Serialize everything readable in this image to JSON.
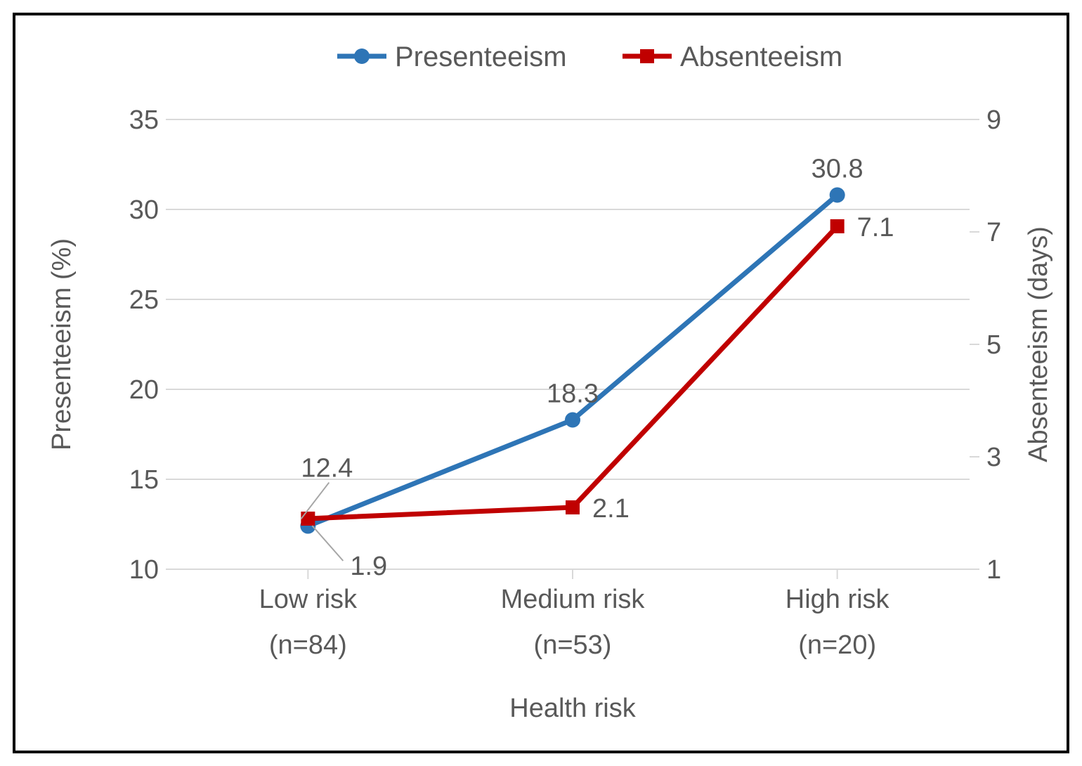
{
  "chart": {
    "type": "line-dual-axis",
    "background_color": "#ffffff",
    "border_color": "#000000",
    "grid_color": "#d9d9d9",
    "tick_color": "#d9d9d9",
    "label_color": "#595959",
    "font_family": "Segoe UI",
    "axis_title_fontsize": 38,
    "tick_fontsize": 38,
    "legend_fontsize": 40,
    "data_label_fontsize": 38,
    "category_fontsize": 38,
    "legend": {
      "items": [
        {
          "label": "Presenteeism",
          "color": "#2e75b6",
          "marker": "circle"
        },
        {
          "label": "Absenteeism",
          "color": "#c00000",
          "marker": "square"
        }
      ]
    },
    "x": {
      "title": "Health risk",
      "categories": [
        {
          "line1": "Low risk",
          "line2": "(n=84)"
        },
        {
          "line1": "Medium risk",
          "line2": "(n=53)"
        },
        {
          "line1": "High risk",
          "line2": "(n=20)"
        }
      ]
    },
    "y_left": {
      "title": "Presenteeism (%)",
      "min": 10,
      "max": 35,
      "step": 5,
      "ticks": [
        10,
        15,
        20,
        25,
        30,
        35
      ]
    },
    "y_right": {
      "title": "Absenteeism (days)",
      "min": 1,
      "max": 9,
      "step": 2,
      "ticks": [
        1,
        3,
        5,
        7,
        9
      ]
    },
    "series": [
      {
        "name": "Presenteeism",
        "axis": "left",
        "color": "#2e75b6",
        "marker": "circle",
        "marker_size": 11,
        "line_width": 7,
        "values": [
          12.4,
          18.3,
          30.8
        ],
        "labels": [
          "12.4",
          "18.3",
          "30.8"
        ],
        "label_pos": [
          "upper-left-callout",
          "above",
          "above"
        ]
      },
      {
        "name": "Absenteeism",
        "axis": "right",
        "color": "#c00000",
        "marker": "square",
        "marker_size": 20,
        "line_width": 7,
        "values": [
          1.9,
          2.1,
          7.1
        ],
        "labels": [
          "1.9",
          "2.1",
          "7.1"
        ],
        "label_pos": [
          "lower-right-callout",
          "right",
          "right"
        ]
      }
    ]
  }
}
